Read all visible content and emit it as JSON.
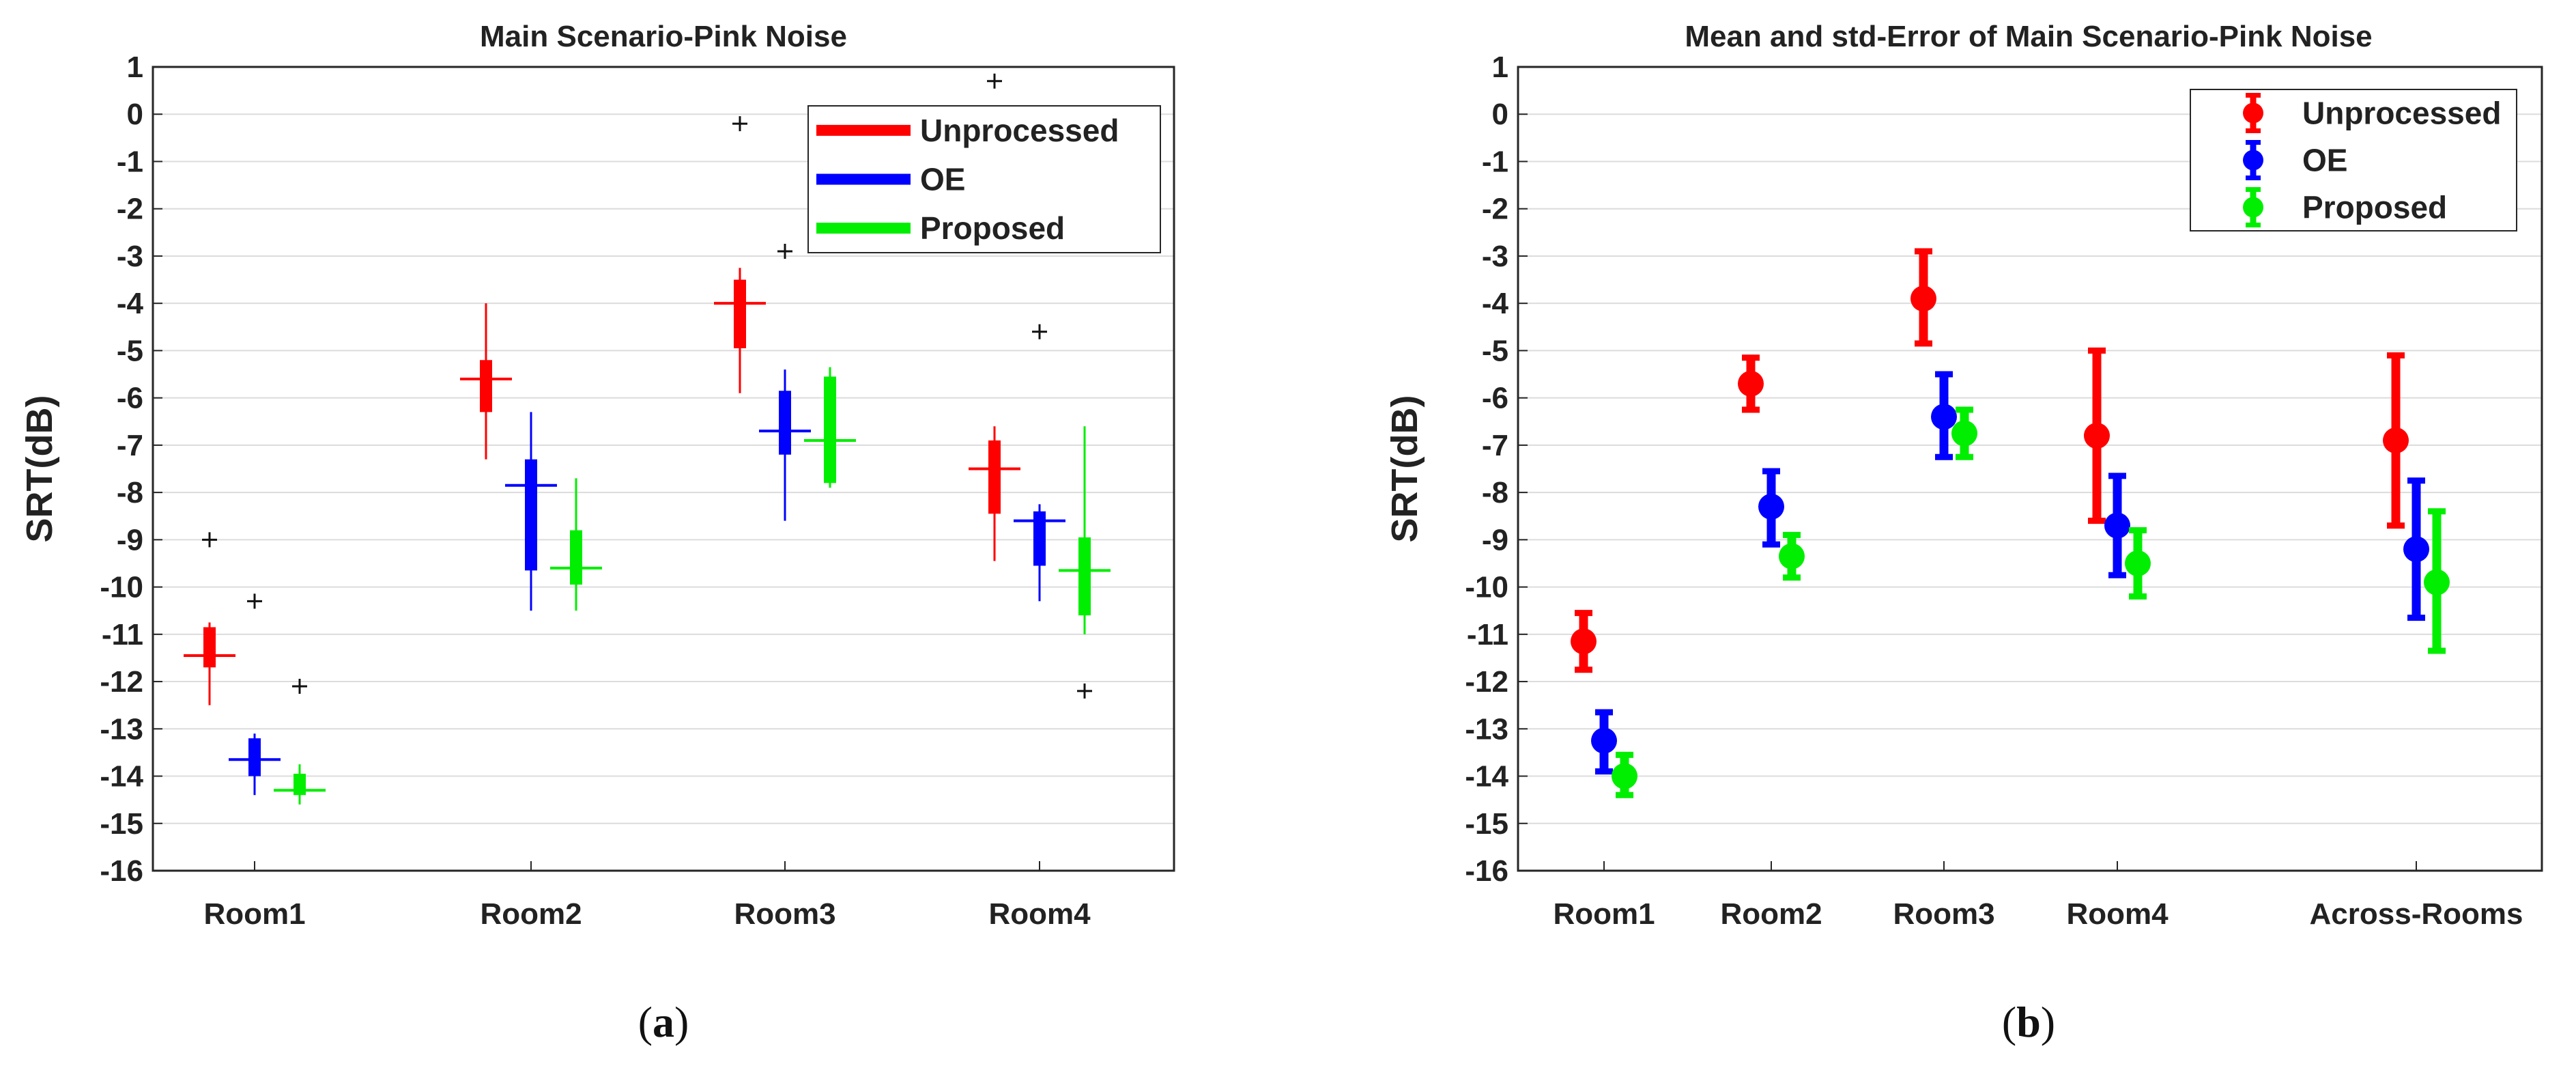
{
  "chart_data": [
    {
      "type": "boxplot",
      "title": "Main Scenario-Pink Noise",
      "xlabel": "",
      "ylabel": "SRT(dB)",
      "caption_letter": "a",
      "categories": [
        "Room1",
        "Room2",
        "Room3",
        "Room4"
      ],
      "yticks": [
        1,
        0,
        -1,
        -2,
        -3,
        -4,
        -5,
        -6,
        -7,
        -8,
        -9,
        -10,
        -11,
        -12,
        -13,
        -14,
        -15,
        -16
      ],
      "ylim": [
        -16,
        1
      ],
      "grid": true,
      "legend": [
        "Unprocessed",
        "OE",
        "Proposed"
      ],
      "legend_position": "top-right",
      "colors": {
        "Unprocessed": "#ff0000",
        "OE": "#0000ff",
        "Proposed": "#00ee00"
      },
      "series": [
        {
          "name": "Unprocessed",
          "boxes": [
            {
              "whisker_low": -12.5,
              "q1": -11.7,
              "median": -11.45,
              "q3": -10.85,
              "whisker_high": -10.75,
              "outliers": [
                -9.0
              ]
            },
            {
              "whisker_low": -7.3,
              "q1": -6.3,
              "median": -5.6,
              "q3": -5.2,
              "whisker_high": -4.0,
              "outliers": []
            },
            {
              "whisker_low": -5.9,
              "q1": -4.95,
              "median": -4.0,
              "q3": -3.5,
              "whisker_high": -3.25,
              "outliers": [
                -0.2
              ]
            },
            {
              "whisker_low": -9.45,
              "q1": -8.45,
              "median": -7.5,
              "q3": -6.9,
              "whisker_high": -6.6,
              "outliers": [
                0.7
              ]
            }
          ]
        },
        {
          "name": "OE",
          "boxes": [
            {
              "whisker_low": -14.4,
              "q1": -14.0,
              "median": -13.65,
              "q3": -13.2,
              "whisker_high": -13.1,
              "outliers": [
                -10.3
              ]
            },
            {
              "whisker_low": -10.5,
              "q1": -9.65,
              "median": -7.85,
              "q3": -7.3,
              "whisker_high": -6.3,
              "outliers": []
            },
            {
              "whisker_low": -8.6,
              "q1": -7.2,
              "median": -6.7,
              "q3": -5.85,
              "whisker_high": -5.4,
              "outliers": [
                -2.9
              ]
            },
            {
              "whisker_low": -10.3,
              "q1": -9.55,
              "median": -8.6,
              "q3": -8.4,
              "whisker_high": -8.25,
              "outliers": [
                -4.6
              ]
            }
          ]
        },
        {
          "name": "Proposed",
          "boxes": [
            {
              "whisker_low": -14.6,
              "q1": -14.4,
              "median": -14.3,
              "q3": -13.95,
              "whisker_high": -13.75,
              "outliers": [
                -12.1
              ]
            },
            {
              "whisker_low": -10.5,
              "q1": -9.95,
              "median": -9.6,
              "q3": -8.8,
              "whisker_high": -7.7,
              "outliers": []
            },
            {
              "whisker_low": -7.9,
              "q1": -7.8,
              "median": -6.9,
              "q3": -5.55,
              "whisker_high": -5.35,
              "outliers": []
            },
            {
              "whisker_low": -11.0,
              "q1": -10.6,
              "median": -9.65,
              "q3": -8.95,
              "whisker_high": -6.6,
              "outliers": [
                -12.2
              ]
            }
          ]
        }
      ]
    },
    {
      "type": "errorbar",
      "title": "Mean and std-Error of Main Scenario-Pink Noise",
      "xlabel": "",
      "ylabel": "SRT(dB)",
      "caption_letter": "b",
      "categories": [
        "Room1",
        "Room2",
        "Room3",
        "Room4",
        "Across-Rooms"
      ],
      "yticks": [
        1,
        0,
        -1,
        -2,
        -3,
        -4,
        -5,
        -6,
        -7,
        -8,
        -9,
        -10,
        -11,
        -12,
        -13,
        -14,
        -15,
        -16
      ],
      "ylim": [
        -16,
        1
      ],
      "grid": true,
      "legend": [
        "Unprocessed",
        "OE",
        "Proposed"
      ],
      "legend_position": "top-right",
      "colors": {
        "Unprocessed": "#ff0000",
        "OE": "#0000ff",
        "Proposed": "#00ee00"
      },
      "series": [
        {
          "name": "Unprocessed",
          "means": [
            -11.15,
            -5.7,
            -3.9,
            -6.8,
            -6.9
          ],
          "lower": [
            -11.75,
            -6.25,
            -4.85,
            -8.6,
            -8.7
          ],
          "upper": [
            -10.55,
            -5.15,
            -2.9,
            -5.0,
            -5.1
          ]
        },
        {
          "name": "OE",
          "means": [
            -13.25,
            -8.3,
            -6.4,
            -8.7,
            -9.2
          ],
          "lower": [
            -13.9,
            -9.1,
            -7.25,
            -9.75,
            -10.65
          ],
          "upper": [
            -12.65,
            -7.55,
            -5.5,
            -7.65,
            -7.75
          ]
        },
        {
          "name": "Proposed",
          "means": [
            -14.0,
            -9.35,
            -6.75,
            -9.5,
            -9.9
          ],
          "lower": [
            -14.4,
            -9.8,
            -7.25,
            -10.2,
            -11.35
          ],
          "upper": [
            -13.55,
            -8.9,
            -6.25,
            -8.8,
            -8.4
          ]
        }
      ]
    }
  ]
}
